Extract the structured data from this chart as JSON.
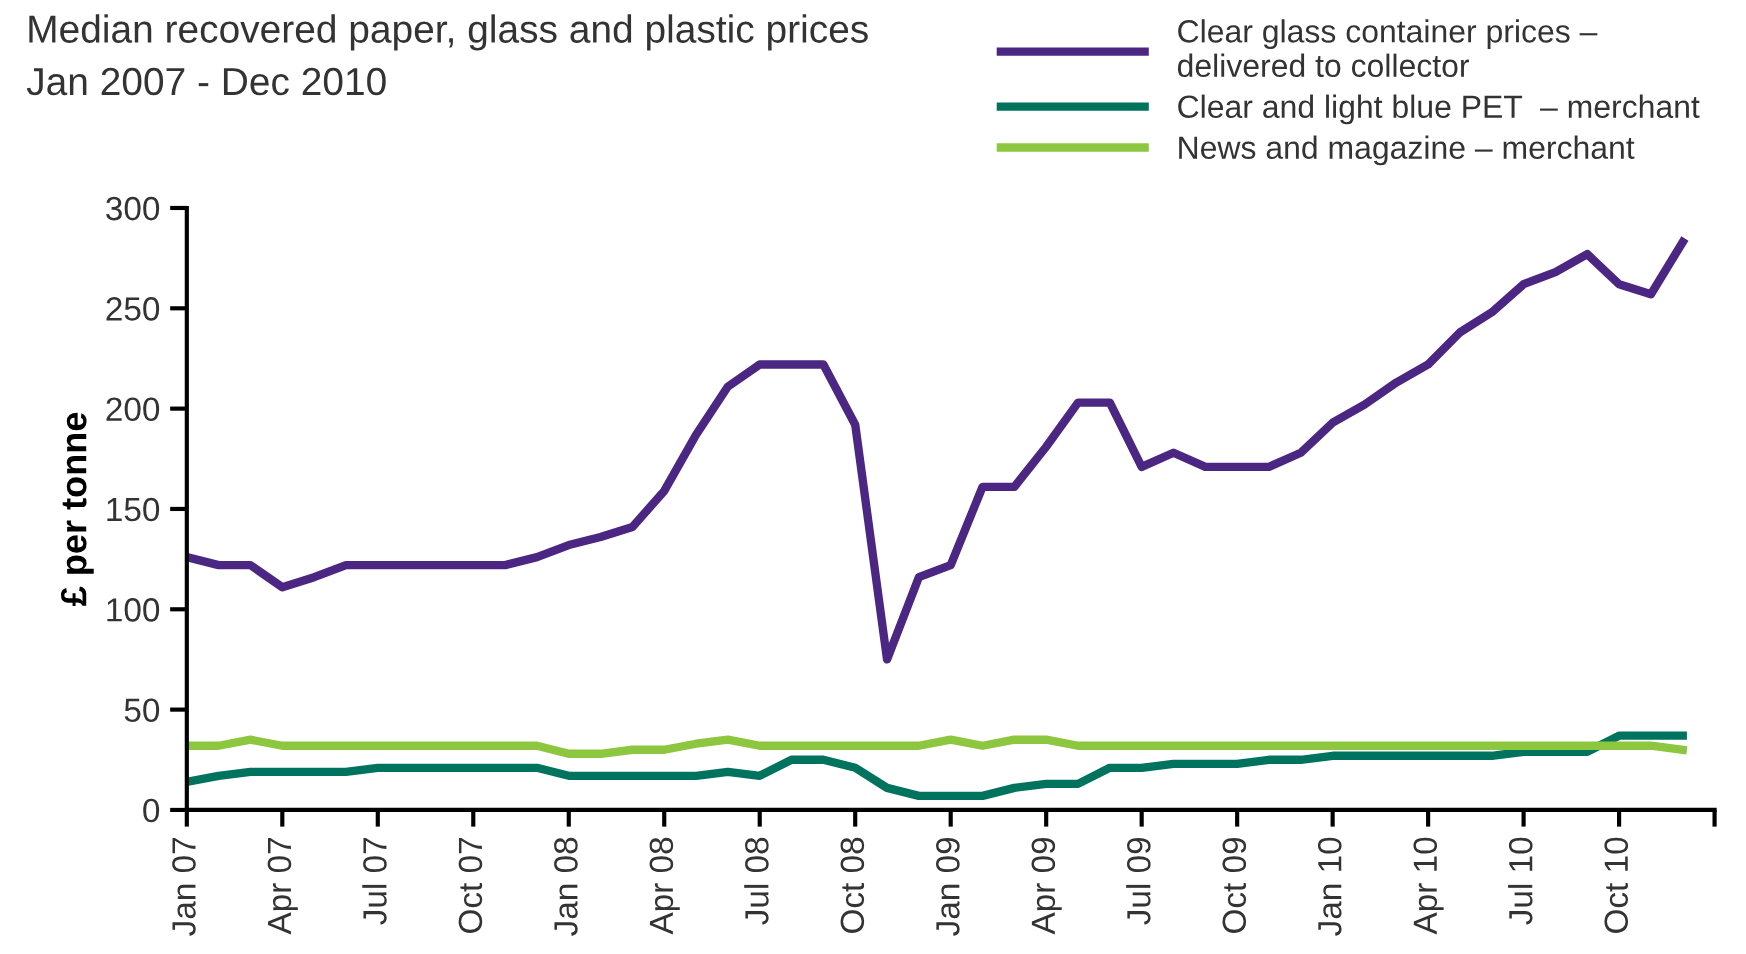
{
  "chart_data": {
    "type": "line",
    "title": "Median recovered paper, glass and plastic prices",
    "subtitle": "Jan 2007 - Dec 2010",
    "ylabel": "£ per tonne",
    "categories": [
      "Jan 07",
      null,
      null,
      "Apr 07",
      null,
      null,
      "Jul 07",
      null,
      null,
      "Oct 07",
      null,
      null,
      "Jan 08",
      null,
      null,
      "Apr 08",
      null,
      null,
      "Jul 08",
      null,
      null,
      "Oct 08",
      null,
      null,
      "Jan 09",
      null,
      null,
      "Apr 09",
      null,
      null,
      "Jul 09",
      null,
      null,
      "Oct 09",
      null,
      null,
      "Jan 10",
      null,
      null,
      "Apr 10",
      null,
      null,
      "Jul 10",
      null,
      null,
      "Oct 10",
      null,
      null
    ],
    "ylim": [
      0,
      300
    ],
    "yticks": [
      0,
      50,
      100,
      150,
      200,
      250,
      300
    ],
    "grid": false,
    "legend": "top right",
    "marker": "none",
    "line_style": "solid",
    "series": [
      {
        "name": "Clear glass container prices –\ndelivered to collector",
        "color": "#4b2683",
        "values": [
          126,
          122,
          122,
          111,
          116,
          122,
          122,
          122,
          122,
          122,
          122,
          126,
          132,
          136,
          141,
          159,
          187,
          211,
          222,
          222,
          222,
          192,
          75,
          116,
          122,
          161,
          161,
          181,
          203,
          203,
          171,
          178,
          171,
          171,
          171,
          178,
          193,
          202,
          213,
          222,
          238,
          248,
          262,
          268,
          277,
          262,
          257,
          283
        ]
      },
      {
        "name": "Clear and light blue PET  – merchant",
        "color": "#00735f",
        "values": [
          14,
          17,
          19,
          19,
          19,
          19,
          21,
          21,
          21,
          21,
          21,
          21,
          17,
          17,
          17,
          17,
          17,
          19,
          17,
          25,
          25,
          21,
          11,
          7,
          7,
          7,
          11,
          13,
          13,
          21,
          21,
          23,
          23,
          23,
          25,
          25,
          27,
          27,
          27,
          27,
          27,
          27,
          29,
          29,
          29,
          37,
          37,
          37
        ]
      },
      {
        "name": "News and magazine – merchant",
        "color": "#8dc63f",
        "values": [
          32,
          32,
          35,
          32,
          32,
          32,
          32,
          32,
          32,
          32,
          32,
          32,
          28,
          28,
          30,
          30,
          33,
          35,
          32,
          32,
          32,
          32,
          32,
          32,
          35,
          32,
          35,
          35,
          32,
          32,
          32,
          32,
          32,
          32,
          32,
          32,
          32,
          32,
          32,
          32,
          32,
          32,
          32,
          32,
          32,
          32,
          32,
          30
        ]
      }
    ]
  }
}
